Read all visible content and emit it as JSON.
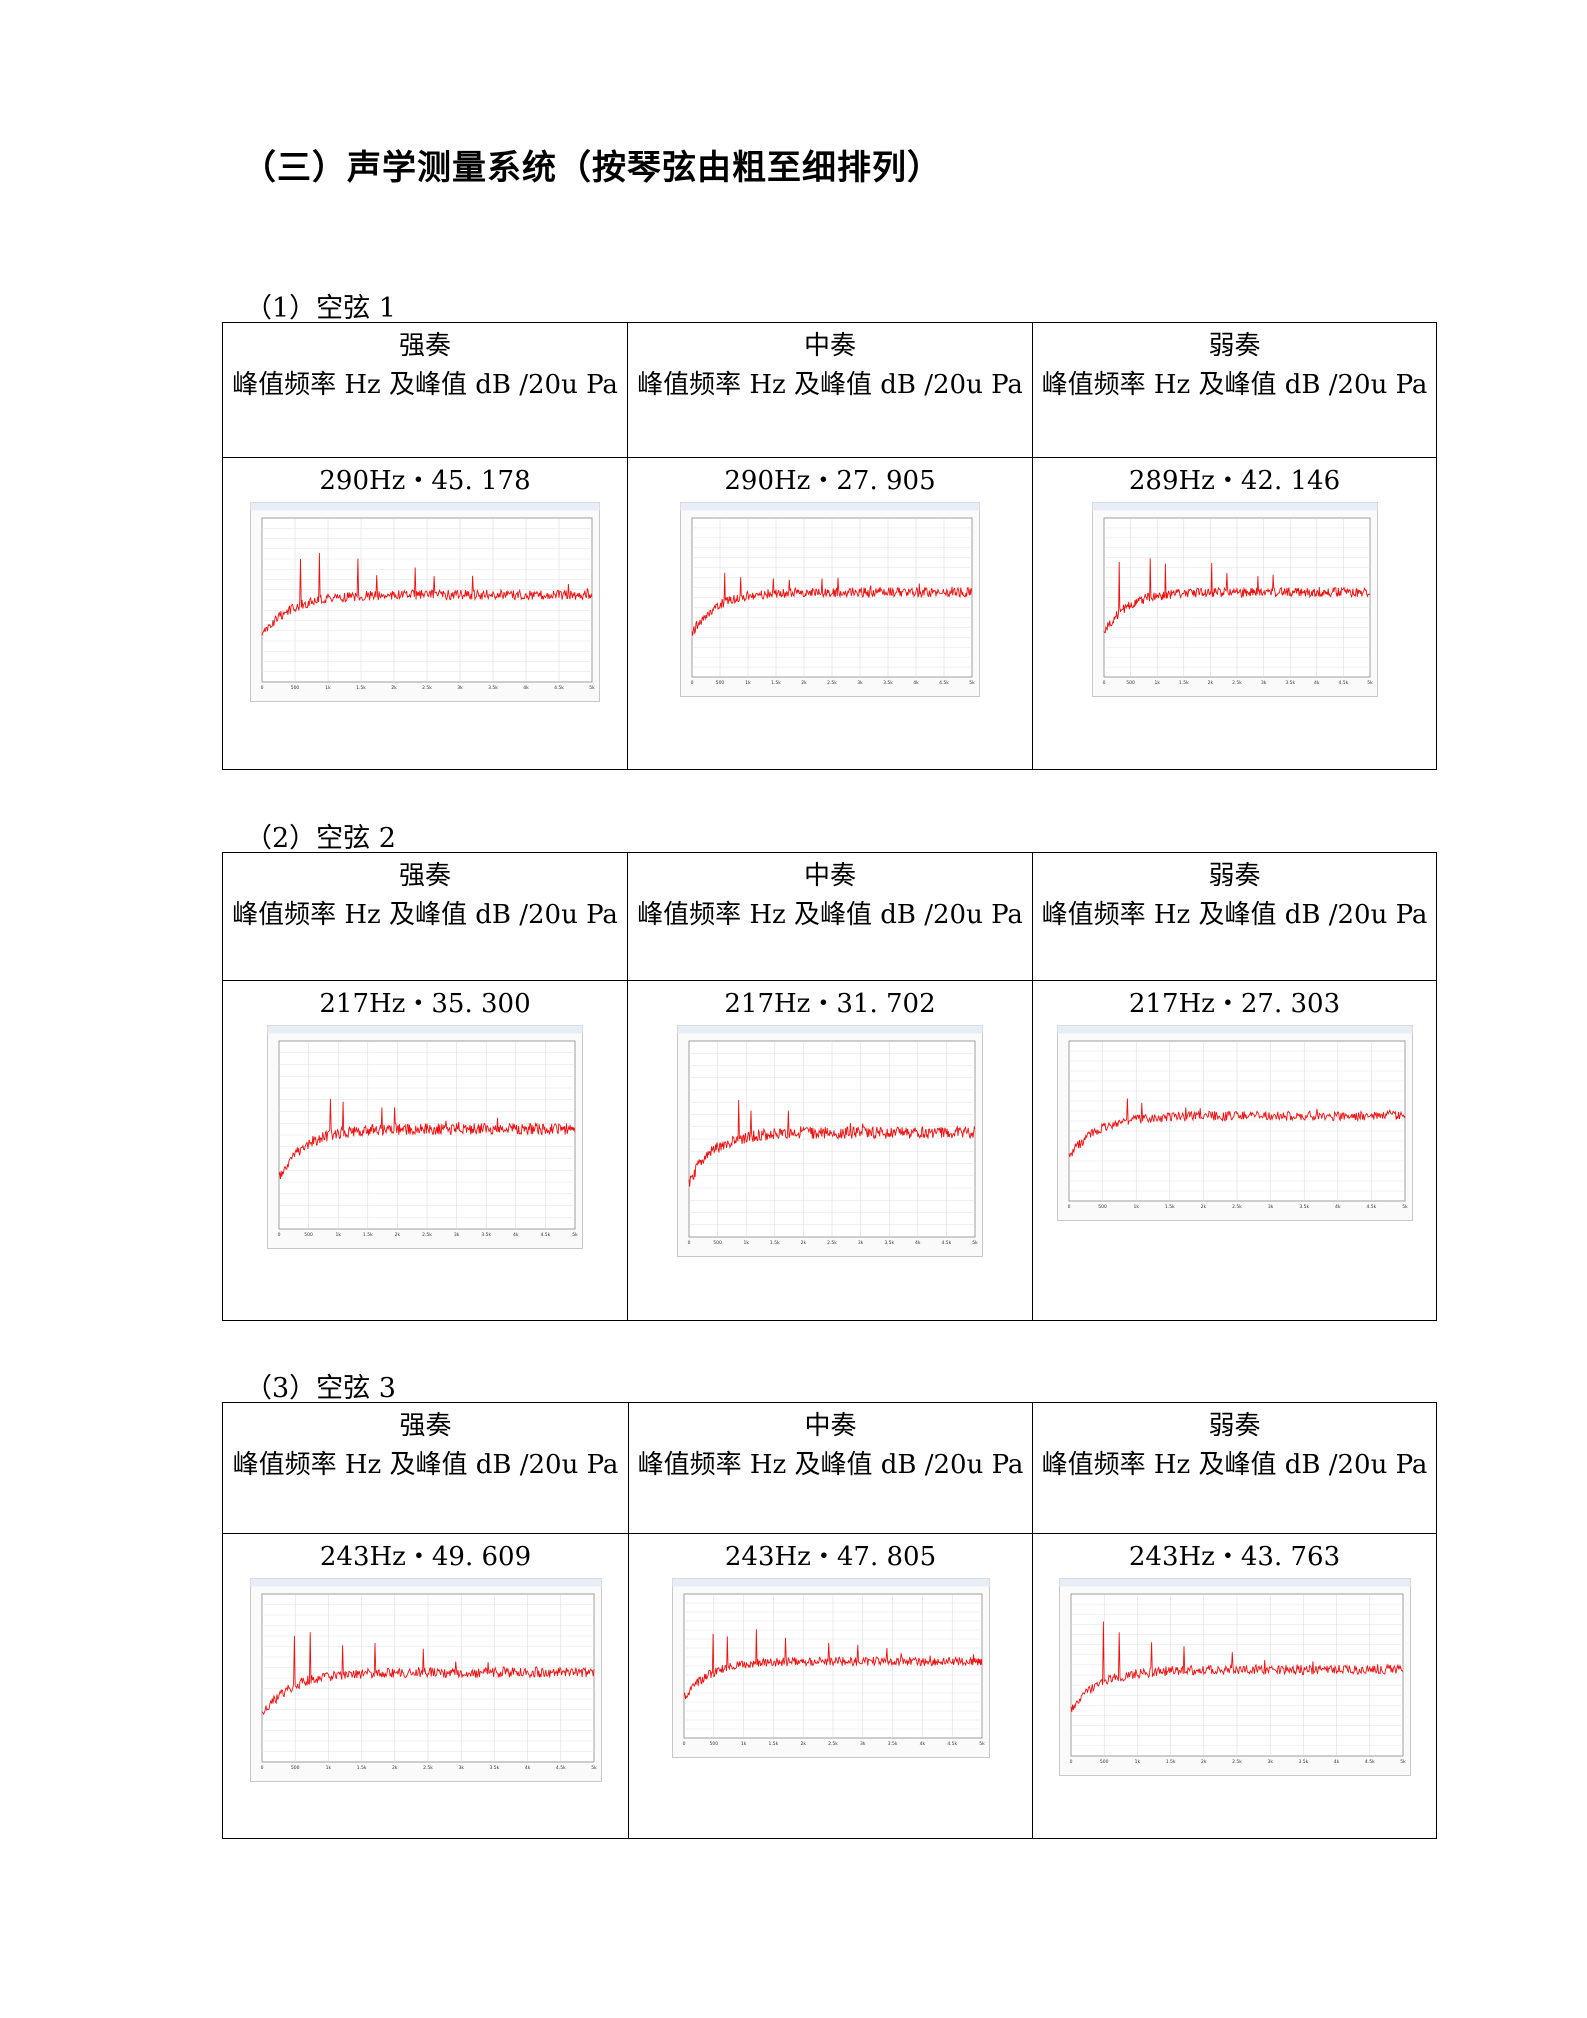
{
  "page_title": "（三）声学测量系统（按琴弦由粗至细排列）",
  "header": {
    "strong": "强奏",
    "medium": "中奏",
    "weak": "弱奏",
    "metric": "峰值频率 Hz 及峰值 dB /20u Pa"
  },
  "sections": [
    {
      "label": "（1）空弦 1",
      "cells": [
        {
          "value": "290Hz・45. 178"
        },
        {
          "value": "290Hz・27. 905"
        },
        {
          "value": "289Hz・42. 146"
        }
      ]
    },
    {
      "label": "（2）空弦 2",
      "cells": [
        {
          "value": "217Hz・35. 300"
        },
        {
          "value": "217Hz・31. 702"
        },
        {
          "value": "217Hz・27. 303"
        }
      ]
    },
    {
      "label": "（3）空弦 3",
      "cells": [
        {
          "value": "243Hz・49. 609"
        },
        {
          "value": "243Hz・47. 805"
        },
        {
          "value": "243Hz・43. 763"
        }
      ]
    }
  ],
  "chart_data": [
    {
      "type": "line",
      "series_color": "#ee1111",
      "x_ticks": [
        "0",
        "500",
        "1k",
        "1.5k",
        "2k",
        "2.5k",
        "3k",
        "3.5k",
        "4k",
        "4.5k",
        "5k"
      ],
      "xlim": [
        0,
        5000
      ],
      "peak_hz": 290,
      "peak_db": 45.178
    },
    {
      "type": "line",
      "series_color": "#ee1111",
      "x_ticks": [
        "0",
        "500",
        "1k",
        "1.5k",
        "2k",
        "2.5k",
        "3k",
        "3.5k",
        "4k",
        "4.5k",
        "5k"
      ],
      "xlim": [
        0,
        5000
      ],
      "peak_hz": 290,
      "peak_db": 27.905
    },
    {
      "type": "line",
      "series_color": "#ee1111",
      "x_ticks": [
        "0",
        "500",
        "1k",
        "1.5k",
        "2k",
        "2.5k",
        "3k",
        "3.5k",
        "4k",
        "4.5k",
        "5k"
      ],
      "xlim": [
        0,
        5000
      ],
      "peak_hz": 289,
      "peak_db": 42.146
    },
    {
      "type": "line",
      "series_color": "#ee1111",
      "x_ticks": [
        "0",
        "500",
        "1k",
        "1.5k",
        "2k",
        "2.5k",
        "3k",
        "3.5k",
        "4k",
        "4.5k",
        "5k"
      ],
      "xlim": [
        0,
        5000
      ],
      "peak_hz": 217,
      "peak_db": 35.3
    },
    {
      "type": "line",
      "series_color": "#ee1111",
      "x_ticks": [
        "0",
        "500",
        "1k",
        "1.5k",
        "2k",
        "2.5k",
        "3k",
        "3.5k",
        "4k",
        "4.5k",
        "5k"
      ],
      "xlim": [
        0,
        5000
      ],
      "peak_hz": 217,
      "peak_db": 31.702
    },
    {
      "type": "line",
      "series_color": "#ee1111",
      "x_ticks": [
        "0",
        "500",
        "1k",
        "1.5k",
        "2k",
        "2.5k",
        "3k",
        "3.5k",
        "4k",
        "4.5k",
        "5k"
      ],
      "xlim": [
        0,
        5000
      ],
      "peak_hz": 217,
      "peak_db": 27.303
    },
    {
      "type": "line",
      "series_color": "#ee1111",
      "x_ticks": [
        "0",
        "500",
        "1k",
        "1.5k",
        "2k",
        "2.5k",
        "3k",
        "3.5k",
        "4k",
        "4.5k",
        "5k"
      ],
      "xlim": [
        0,
        5000
      ],
      "peak_hz": 243,
      "peak_db": 49.609
    },
    {
      "type": "line",
      "series_color": "#ee1111",
      "x_ticks": [
        "0",
        "500",
        "1k",
        "1.5k",
        "2k",
        "2.5k",
        "3k",
        "3.5k",
        "4k",
        "4.5k",
        "5k"
      ],
      "xlim": [
        0,
        5000
      ],
      "peak_hz": 243,
      "peak_db": 47.805
    },
    {
      "type": "line",
      "series_color": "#ee1111",
      "x_ticks": [
        "0",
        "500",
        "1k",
        "1.5k",
        "2k",
        "2.5k",
        "3k",
        "3.5k",
        "4k",
        "4.5k",
        "5k"
      ],
      "xlim": [
        0,
        5000
      ],
      "peak_hz": 243,
      "peak_db": 43.763
    }
  ]
}
